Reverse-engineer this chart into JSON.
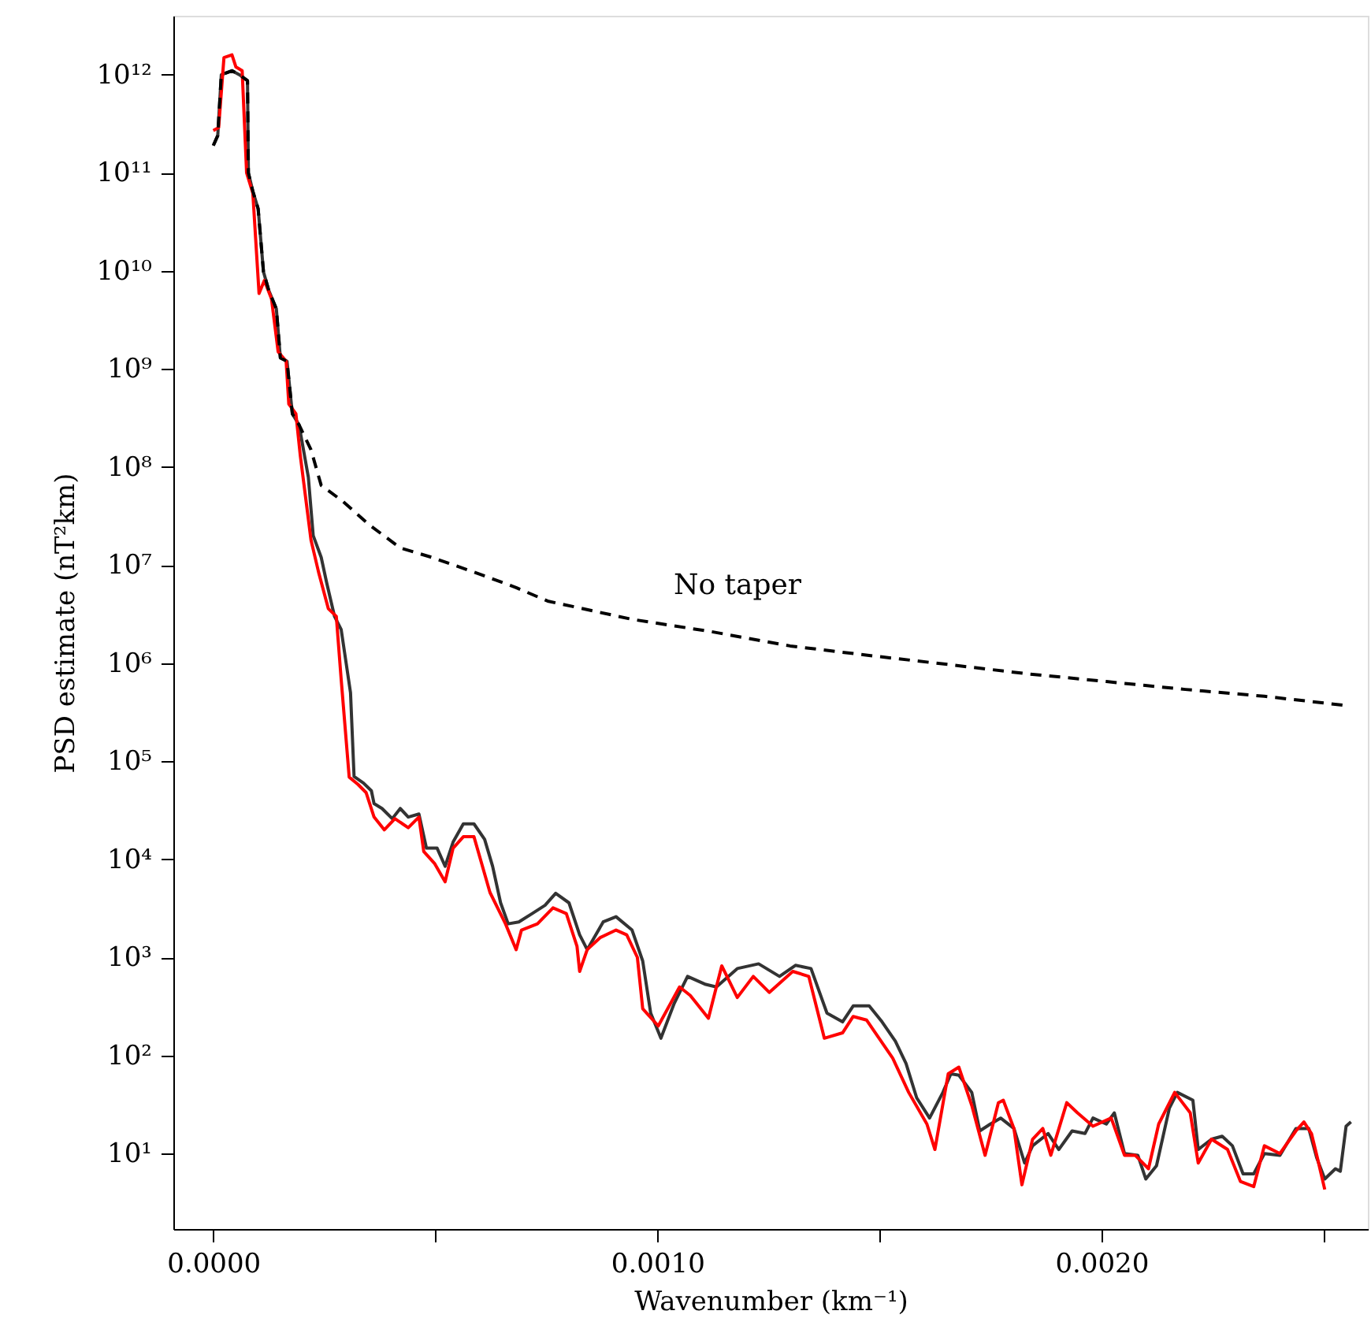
{
  "chart_data": {
    "type": "line",
    "xlabel": "Wavenumber (km⁻¹)",
    "ylabel": "PSD estimate (nT²km)",
    "log": true,
    "xlim": [
      -9e-05,
      0.0026
    ],
    "ylim": [
      1.7,
      4000000000000.0
    ],
    "xticks": [
      {
        "value": 0,
        "label": "0.0000"
      },
      {
        "value": 0.0005,
        "label": null
      },
      {
        "value": 0.001,
        "label": "0.0010"
      },
      {
        "value": 0.0015,
        "label": null
      },
      {
        "value": 0.002,
        "label": "0.0020"
      },
      {
        "value": 0.0025,
        "label": null
      }
    ],
    "yticks": [
      {
        "value": 10,
        "label": "10¹"
      },
      {
        "value": 100,
        "label": "10²"
      },
      {
        "value": 1000,
        "label": "10³"
      },
      {
        "value": 10000,
        "label": "10⁴"
      },
      {
        "value": 100000,
        "label": "10⁵"
      },
      {
        "value": 1000000,
        "label": "10⁶"
      },
      {
        "value": 10000000,
        "label": "10⁷"
      },
      {
        "value": 100000000,
        "label": "10⁸"
      },
      {
        "value": 1000000000,
        "label": "10⁹"
      },
      {
        "value": 10000000000,
        "label": "10¹⁰"
      },
      {
        "value": 100000000000,
        "label": "10¹¹"
      },
      {
        "value": 1000000000000,
        "label": "10¹²"
      }
    ],
    "annotations": [
      "No taper"
    ],
    "series": [
      {
        "color": "#333333",
        "line_style": "solid",
        "x": [
          0,
          1e-05,
          1.8e-05,
          4.2e-05,
          5.9e-05,
          7.7e-05,
          7.9e-05,
          8.9e-05,
          0.000101,
          0.000113,
          0.000125,
          0.000142,
          0.000151,
          0.000166,
          0.000178,
          0.000193,
          0.000214,
          0.000225,
          0.000243,
          0.000255,
          0.000273,
          0.000288,
          0.000309,
          0.000317,
          0.000338,
          0.000356,
          0.000362,
          0.00038,
          0.000403,
          0.000421,
          0.000439,
          0.000463,
          0.00048,
          0.000504,
          0.000522,
          0.00054,
          0.000563,
          0.000587,
          0.000611,
          0.000629,
          0.000647,
          0.000664,
          0.000688,
          0.000718,
          0.000747,
          0.000771,
          0.000801,
          0.000825,
          0.000842,
          0.000878,
          0.000907,
          0.000943,
          0.000967,
          0.000985,
          0.001008,
          0.001038,
          0.001068,
          0.001109,
          0.001133,
          0.00118,
          0.001228,
          0.001275,
          0.001311,
          0.001346,
          0.001382,
          0.001417,
          0.001441,
          0.001477,
          0.001506,
          0.001536,
          0.00156,
          0.001584,
          0.001613,
          0.001643,
          0.001661,
          0.001679,
          0.001708,
          0.001726,
          0.00175,
          0.001773,
          0.001803,
          0.001827,
          0.001845,
          0.00188,
          0.001904,
          0.001934,
          0.001963,
          0.001981,
          0.002011,
          0.002029,
          0.002052,
          0.002082,
          0.0021,
          0.002124,
          0.002153,
          0.002171,
          0.002206,
          0.002218,
          0.002248,
          0.002272,
          0.002295,
          0.002319,
          0.002343,
          0.002367,
          0.002402,
          0.002438,
          0.002467,
          0.002485,
          0.002503,
          0.002527,
          0.002538,
          0.002551,
          0.002562
        ],
        "values": [
          190000000000.0,
          240000000000.0,
          1000000000000.0,
          1100000000000.0,
          1000000000000.0,
          870000000000.0,
          100000000000.0,
          65000000000.0,
          43000000000.0,
          9800000000.0,
          6300000000.0,
          4100000000.0,
          1300000000.0,
          1200000000.0,
          350000000.0,
          270000000.0,
          79000000.0,
          20000000.0,
          12000000.0,
          6700000.0,
          3000000.0,
          2200000.0,
          500000.0,
          70000.0,
          60000.0,
          50000.0,
          37000.0,
          33000.0,
          26000.0,
          33000.0,
          27000.0,
          29000.0,
          13000.0,
          13000.0,
          8500.0,
          15000.0,
          23000.0,
          23000.0,
          16000.0,
          8500.0,
          3600.0,
          2200.0,
          2300.0,
          2800.0,
          3400.0,
          4500.0,
          3600.0,
          1700.0,
          1200.0,
          2300.0,
          2600.0,
          1900.0,
          920.0,
          270.0,
          150.0,
          340.0,
          640.0,
          530.0,
          500.0,
          770.0,
          860.0,
          640.0,
          830.0,
          770.0,
          270.0,
          220.0,
          320.0,
          320.0,
          220.0,
          140.0,
          83,
          37,
          23,
          42,
          65,
          63,
          42,
          17,
          20,
          23,
          18,
          8.0,
          12,
          16,
          11,
          17,
          16,
          23,
          20,
          26,
          10,
          9.6,
          5.5,
          7.5,
          29,
          42,
          35,
          11,
          14,
          15,
          12,
          6.2,
          6.2,
          10,
          9.6,
          18,
          18,
          9.0,
          5.5,
          7.0,
          6.6,
          19,
          21
        ]
      },
      {
        "color": "#ff0000",
        "line_style": "solid",
        "x": [
          0,
          1.2e-05,
          2.4e-05,
          4.2e-05,
          5.1e-05,
          6.5e-05,
          7.5e-05,
          8.9e-05,
          0.000103,
          0.000115,
          0.000131,
          0.000146,
          0.000164,
          0.00017,
          0.000186,
          0.000196,
          0.00022,
          0.000237,
          0.000259,
          0.000277,
          0.000288,
          0.000306,
          0.000326,
          0.000344,
          0.000362,
          0.000385,
          0.000409,
          0.000439,
          0.000463,
          0.000474,
          0.000498,
          0.000522,
          0.00054,
          0.000563,
          0.000587,
          0.000623,
          0.000658,
          0.000682,
          0.000694,
          0.00073,
          0.000765,
          0.000795,
          0.000819,
          0.000825,
          0.000842,
          0.000872,
          0.000907,
          0.000931,
          0.000955,
          0.000967,
          0.001002,
          0.00105,
          0.001074,
          0.001115,
          0.001145,
          0.00118,
          0.001216,
          0.001252,
          0.001305,
          0.001341,
          0.001376,
          0.001417,
          0.001441,
          0.001471,
          0.001495,
          0.00153,
          0.001566,
          0.001607,
          0.001625,
          0.001655,
          0.001679,
          0.001708,
          0.001738,
          0.001768,
          0.001779,
          0.001803,
          0.001821,
          0.001845,
          0.001868,
          0.001886,
          0.001922,
          0.001946,
          0.001981,
          0.002022,
          0.002052,
          0.002076,
          0.002106,
          0.002129,
          0.002165,
          0.0022,
          0.002218,
          0.002248,
          0.002284,
          0.002313,
          0.002343,
          0.002367,
          0.002402,
          0.002438,
          0.002456,
          0.002473,
          0.002485,
          0.002503
        ],
        "values": [
          270000000000.0,
          290000000000.0,
          1500000000000.0,
          1600000000000.0,
          1200000000000.0,
          1100000000000.0,
          100000000000.0,
          62000000000.0,
          5900000000.0,
          8000000000.0,
          5200000000.0,
          1500000000.0,
          1200000000.0,
          440000000.0,
          350000000.0,
          130000000.0,
          18000000.0,
          8500000.0,
          3600000.0,
          3000000.0,
          680000.0,
          69000.0,
          58000.0,
          48000.0,
          27000.0,
          20000.0,
          26000.0,
          21000.0,
          27000.0,
          12000.0,
          9100.0,
          5900.0,
          13000.0,
          17000.0,
          17000.0,
          4600.0,
          2200.0,
          1200.0,
          1900.0,
          2200.0,
          3200.0,
          2800.0,
          1300.0,
          720.0,
          1200.0,
          1600.0,
          1900.0,
          1700.0,
          1000.0,
          300.0,
          200.0,
          500.0,
          410.0,
          240.0,
          820.0,
          390.0,
          640.0,
          440.0,
          720.0,
          640.0,
          150.0,
          170.0,
          250.0,
          230.0,
          160.0,
          94,
          42,
          20,
          11,
          65,
          76,
          31,
          9.6,
          33,
          35,
          18,
          4.8,
          14,
          18,
          9.6,
          33,
          26,
          19,
          23,
          9.6,
          9.6,
          7.0,
          20,
          42,
          26,
          8.0,
          14,
          11,
          5.2,
          4.6,
          12,
          10,
          17,
          21,
          16,
          9.6,
          4.3
        ]
      },
      {
        "color": "#000000",
        "line_style": "dashed",
        "x": [
          0,
          1e-05,
          1.8e-05,
          4.2e-05,
          5.9e-05,
          7.7e-05,
          7.9e-05,
          8.9e-05,
          0.000101,
          0.000113,
          0.000125,
          0.000142,
          0.000151,
          0.000166,
          0.000178,
          0.000193,
          0.00022,
          0.000243,
          0.000291,
          0.00035,
          0.000421,
          0.000492,
          0.000587,
          0.000682,
          0.000753,
          0.000943,
          0.001121,
          0.001299,
          0.001477,
          0.001655,
          0.001833,
          0.002011,
          0.002189,
          0.002367,
          0.002552
        ],
        "values": [
          190000000000.0,
          240000000000.0,
          1000000000000.0,
          1100000000000.0,
          1000000000000.0,
          870000000000.0,
          100000000000.0,
          65000000000.0,
          43000000000.0,
          9800000000.0,
          6300000000.0,
          4100000000.0,
          1300000000.0,
          1200000000.0,
          350000000.0,
          270000000.0,
          150000000.0,
          65000000.0,
          45000000.0,
          26000000.0,
          15000000.0,
          12000000.0,
          8500000.0,
          5900000.0,
          4300000.0,
          2800000.0,
          2100000.0,
          1500000.0,
          1200000.0,
          970000.0,
          780000.0,
          650000.0,
          540000.0,
          460000.0,
          370000.0
        ]
      }
    ]
  }
}
